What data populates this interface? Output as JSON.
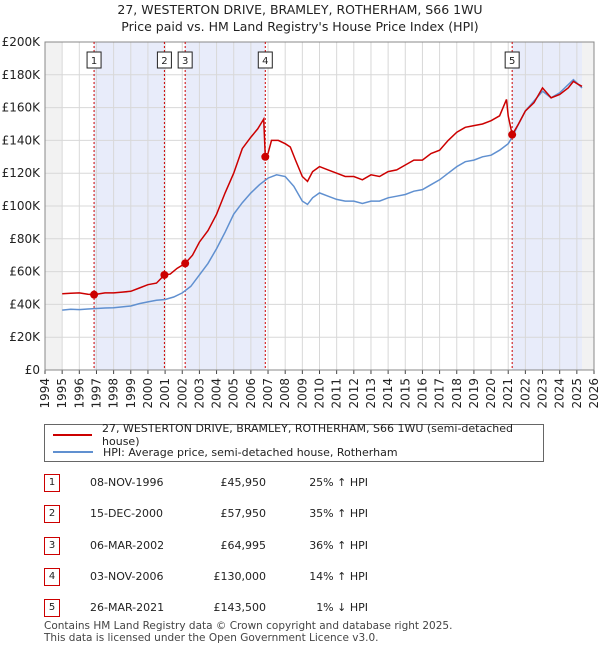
{
  "title_line1": "27, WESTERTON DRIVE, BRAMLEY, ROTHERHAM, S66 1WU",
  "title_line2": "Price paid vs. HM Land Registry's House Price Index (HPI)",
  "chart_data": {
    "type": "line",
    "ylim": [
      0,
      200000
    ],
    "xlim": [
      1994,
      2026
    ],
    "yticks": [
      {
        "value": 0,
        "label": "£0"
      },
      {
        "value": 20000,
        "label": "£20K"
      },
      {
        "value": 40000,
        "label": "£40K"
      },
      {
        "value": 60000,
        "label": "£60K"
      },
      {
        "value": 80000,
        "label": "£80K"
      },
      {
        "value": 100000,
        "label": "£100K"
      },
      {
        "value": 120000,
        "label": "£120K"
      },
      {
        "value": 140000,
        "label": "£140K"
      },
      {
        "value": 160000,
        "label": "£160K"
      },
      {
        "value": 180000,
        "label": "£180K"
      },
      {
        "value": 200000,
        "label": "£200K"
      }
    ],
    "xticks": [
      "1994",
      "1995",
      "1996",
      "1997",
      "1998",
      "1999",
      "2000",
      "2001",
      "2002",
      "2003",
      "2004",
      "2005",
      "2006",
      "2007",
      "2008",
      "2009",
      "2010",
      "2011",
      "2012",
      "2013",
      "2014",
      "2015",
      "2016",
      "2017",
      "2018",
      "2019",
      "2020",
      "2021",
      "2022",
      "2023",
      "2024",
      "2025",
      "2026"
    ],
    "grid": true,
    "series": [
      {
        "name": "27, WESTERTON DRIVE, BRAMLEY, ROTHERHAM, S66 1WU (semi-detached house)",
        "color": "#cc0000",
        "points": [
          [
            1995.0,
            46500
          ],
          [
            1995.5,
            46800
          ],
          [
            1996.0,
            47000
          ],
          [
            1996.5,
            46200
          ],
          [
            1996.86,
            45950
          ],
          [
            1997.5,
            47000
          ],
          [
            1998.0,
            47000
          ],
          [
            1998.5,
            47500
          ],
          [
            1999.0,
            48000
          ],
          [
            1999.5,
            50000
          ],
          [
            2000.0,
            52000
          ],
          [
            2000.5,
            53000
          ],
          [
            2000.96,
            57950
          ],
          [
            2001.3,
            58500
          ],
          [
            2001.7,
            62000
          ],
          [
            2002.17,
            64995
          ],
          [
            2002.6,
            70000
          ],
          [
            2003.0,
            78000
          ],
          [
            2003.5,
            85000
          ],
          [
            2004.0,
            95000
          ],
          [
            2004.5,
            108000
          ],
          [
            2005.0,
            120000
          ],
          [
            2005.5,
            135000
          ],
          [
            2006.0,
            142000
          ],
          [
            2006.4,
            147000
          ],
          [
            2006.75,
            153000
          ],
          [
            2006.84,
            130000
          ],
          [
            2007.0,
            132000
          ],
          [
            2007.2,
            140000
          ],
          [
            2007.6,
            140000
          ],
          [
            2008.0,
            138000
          ],
          [
            2008.3,
            136000
          ],
          [
            2008.6,
            128000
          ],
          [
            2009.0,
            118000
          ],
          [
            2009.3,
            115000
          ],
          [
            2009.6,
            121000
          ],
          [
            2010.0,
            124000
          ],
          [
            2010.5,
            122000
          ],
          [
            2011.0,
            120000
          ],
          [
            2011.5,
            118000
          ],
          [
            2012.0,
            118000
          ],
          [
            2012.5,
            116000
          ],
          [
            2013.0,
            119000
          ],
          [
            2013.5,
            118000
          ],
          [
            2014.0,
            121000
          ],
          [
            2014.5,
            122000
          ],
          [
            2015.0,
            125000
          ],
          [
            2015.5,
            128000
          ],
          [
            2016.0,
            128000
          ],
          [
            2016.5,
            132000
          ],
          [
            2017.0,
            134000
          ],
          [
            2017.5,
            140000
          ],
          [
            2018.0,
            145000
          ],
          [
            2018.5,
            148000
          ],
          [
            2019.0,
            149000
          ],
          [
            2019.5,
            150000
          ],
          [
            2020.0,
            152000
          ],
          [
            2020.5,
            155000
          ],
          [
            2020.9,
            165000
          ],
          [
            2021.0,
            155000
          ],
          [
            2021.23,
            143500
          ],
          [
            2021.6,
            150000
          ],
          [
            2022.0,
            158000
          ],
          [
            2022.5,
            163000
          ],
          [
            2023.0,
            172000
          ],
          [
            2023.5,
            166000
          ],
          [
            2024.0,
            168000
          ],
          [
            2024.5,
            172000
          ],
          [
            2024.8,
            176000
          ],
          [
            2025.1,
            174000
          ],
          [
            2025.3,
            173000
          ]
        ]
      },
      {
        "name": "HPI: Average price, semi-detached house, Rotherham",
        "color": "#6090d0",
        "points": [
          [
            1995.0,
            36500
          ],
          [
            1995.5,
            37000
          ],
          [
            1996.0,
            36800
          ],
          [
            1996.5,
            37200
          ],
          [
            1997.0,
            37500
          ],
          [
            1997.5,
            37800
          ],
          [
            1998.0,
            38000
          ],
          [
            1998.5,
            38500
          ],
          [
            1999.0,
            39000
          ],
          [
            1999.5,
            40500
          ],
          [
            2000.0,
            41500
          ],
          [
            2000.5,
            42500
          ],
          [
            2001.0,
            43000
          ],
          [
            2001.5,
            44500
          ],
          [
            2002.0,
            47000
          ],
          [
            2002.5,
            51000
          ],
          [
            2003.0,
            58000
          ],
          [
            2003.5,
            65000
          ],
          [
            2004.0,
            74000
          ],
          [
            2004.5,
            84000
          ],
          [
            2005.0,
            95000
          ],
          [
            2005.5,
            102000
          ],
          [
            2006.0,
            108000
          ],
          [
            2006.5,
            113000
          ],
          [
            2007.0,
            117000
          ],
          [
            2007.5,
            119000
          ],
          [
            2008.0,
            118000
          ],
          [
            2008.5,
            112000
          ],
          [
            2009.0,
            103000
          ],
          [
            2009.3,
            101000
          ],
          [
            2009.6,
            105000
          ],
          [
            2010.0,
            108000
          ],
          [
            2010.5,
            106000
          ],
          [
            2011.0,
            104000
          ],
          [
            2011.5,
            103000
          ],
          [
            2012.0,
            103000
          ],
          [
            2012.5,
            101500
          ],
          [
            2013.0,
            103000
          ],
          [
            2013.5,
            103000
          ],
          [
            2014.0,
            105000
          ],
          [
            2014.5,
            106000
          ],
          [
            2015.0,
            107000
          ],
          [
            2015.5,
            109000
          ],
          [
            2016.0,
            110000
          ],
          [
            2016.5,
            113000
          ],
          [
            2017.0,
            116000
          ],
          [
            2017.5,
            120000
          ],
          [
            2018.0,
            124000
          ],
          [
            2018.5,
            127000
          ],
          [
            2019.0,
            128000
          ],
          [
            2019.5,
            130000
          ],
          [
            2020.0,
            131000
          ],
          [
            2020.5,
            134000
          ],
          [
            2021.0,
            138000
          ],
          [
            2021.23,
            142000
          ],
          [
            2021.6,
            150000
          ],
          [
            2022.0,
            158000
          ],
          [
            2022.5,
            164000
          ],
          [
            2023.0,
            170000
          ],
          [
            2023.5,
            166000
          ],
          [
            2024.0,
            169000
          ],
          [
            2024.5,
            174000
          ],
          [
            2024.8,
            177000
          ],
          [
            2025.1,
            174000
          ],
          [
            2025.3,
            172000
          ]
        ]
      }
    ],
    "sales": [
      {
        "label": "1",
        "x": 1996.86,
        "price": 45950
      },
      {
        "label": "2",
        "x": 2000.96,
        "price": 57950
      },
      {
        "label": "3",
        "x": 2002.17,
        "price": 64995
      },
      {
        "label": "4",
        "x": 2006.84,
        "price": 130000
      },
      {
        "label": "5",
        "x": 2021.23,
        "price": 143500
      }
    ],
    "shaded_ranges": [
      [
        1994.0,
        1995.0
      ],
      [
        2025.3,
        2026.0
      ]
    ]
  },
  "legend": {
    "property": "27, WESTERTON DRIVE, BRAMLEY, ROTHERHAM, S66 1WU (semi-detached house)",
    "hpi": "HPI: Average price, semi-detached house, Rotherham"
  },
  "colors": {
    "property": "#cc0000",
    "hpi": "#6090d0",
    "shade": "#e8ecfa"
  },
  "transactions": [
    {
      "num": "1",
      "date": "08-NOV-1996",
      "price": "£45,950",
      "hpi": "25% ↑ HPI"
    },
    {
      "num": "2",
      "date": "15-DEC-2000",
      "price": "£57,950",
      "hpi": "35% ↑ HPI"
    },
    {
      "num": "3",
      "date": "06-MAR-2002",
      "price": "£64,995",
      "hpi": "36% ↑ HPI"
    },
    {
      "num": "4",
      "date": "03-NOV-2006",
      "price": "£130,000",
      "hpi": "14% ↑ HPI"
    },
    {
      "num": "5",
      "date": "26-MAR-2021",
      "price": "£143,500",
      "hpi": "1% ↓ HPI"
    }
  ],
  "footer": {
    "line1": "Contains HM Land Registry data © Crown copyright and database right 2025.",
    "line2": "This data is licensed under the Open Government Licence v3.0."
  }
}
